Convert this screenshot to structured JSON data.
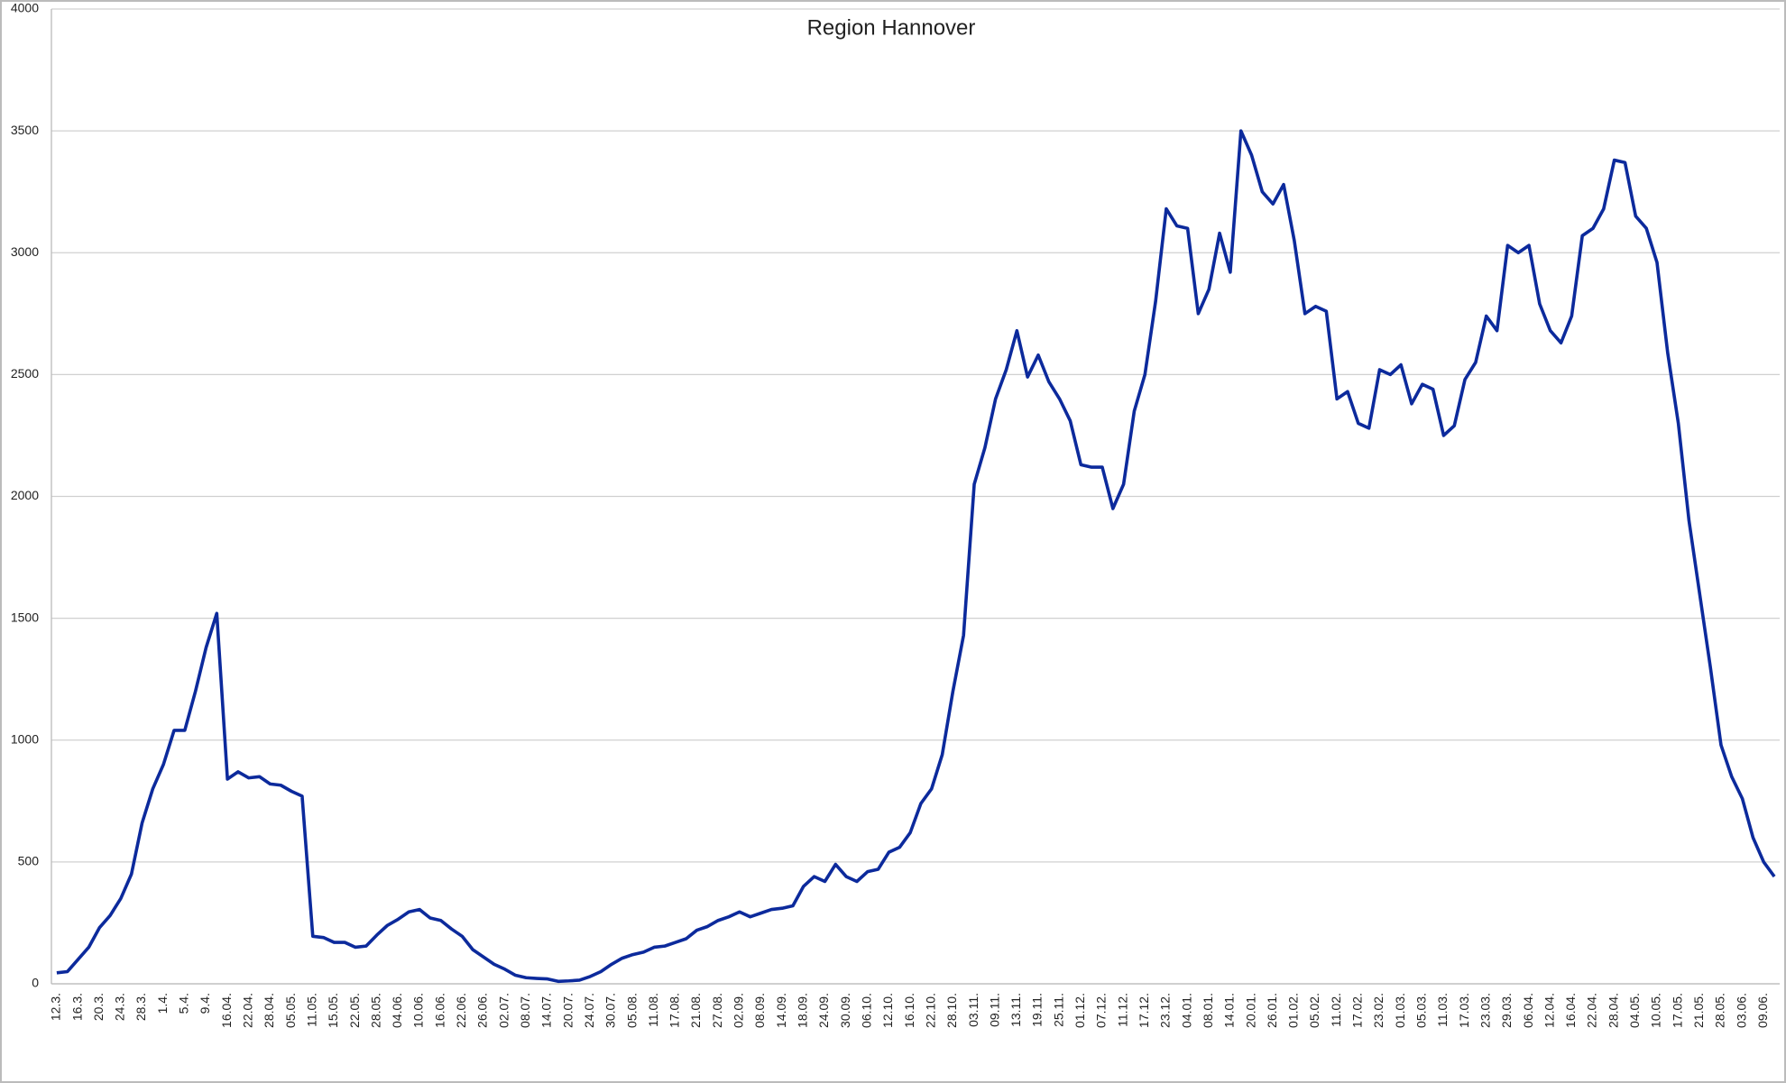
{
  "chart_data": {
    "type": "line",
    "title": "Region Hannover",
    "categories": [
      "12.3.",
      null,
      "16.3.",
      null,
      "20.3.",
      null,
      "24.3.",
      null,
      "28.3.",
      null,
      "1.4.",
      null,
      "5.4.",
      null,
      "9.4.",
      null,
      "16.04.",
      null,
      "22.04.",
      null,
      "28.04.",
      null,
      "05.05.",
      null,
      "11.05.",
      null,
      "15.05.",
      null,
      "22.05.",
      null,
      "28.05.",
      null,
      "04.06.",
      null,
      "10.06.",
      null,
      "16.06.",
      null,
      "22.06.",
      null,
      "26.06.",
      null,
      "02.07.",
      null,
      "08.07.",
      null,
      "14.07.",
      null,
      "20.07.",
      null,
      "24.07.",
      null,
      "30.07.",
      null,
      "05.08.",
      null,
      "11.08.",
      null,
      "17.08.",
      null,
      "21.08.",
      null,
      "27.08.",
      null,
      "02.09.",
      null,
      "08.09.",
      null,
      "14.09.",
      null,
      "18.09.",
      null,
      "24.09.",
      null,
      "30.09.",
      null,
      "06.10.",
      null,
      "12.10.",
      null,
      "16.10.",
      null,
      "22.10.",
      null,
      "28.10.",
      null,
      "03.11.",
      null,
      "09.11.",
      null,
      "13.11.",
      null,
      "19.11.",
      null,
      "25.11.",
      null,
      "01.12.",
      null,
      "07.12.",
      null,
      "11.12.",
      null,
      "17.12.",
      null,
      "23.12.",
      null,
      "04.01.",
      null,
      "08.01.",
      null,
      "14.01.",
      null,
      "20.01.",
      null,
      "26.01.",
      null,
      "01.02.",
      null,
      "05.02.",
      null,
      "11.02.",
      null,
      "17.02.",
      null,
      "23.02.",
      null,
      "01.03.",
      null,
      "05.03.",
      null,
      "11.03.",
      null,
      "17.03.",
      null,
      "23.03.",
      null,
      "29.03.",
      null,
      "06.04.",
      null,
      "12.04.",
      null,
      "16.04.",
      null,
      "22.04.",
      null,
      "28.04.",
      null,
      "04.05.",
      null,
      "10.05.",
      null,
      "17.05.",
      null,
      "21.05.",
      null,
      "28.05.",
      null,
      "03.06.",
      null,
      "09.06.",
      null
    ],
    "values": [
      45,
      50,
      100,
      150,
      230,
      280,
      350,
      450,
      660,
      800,
      900,
      1040,
      1040,
      1200,
      1380,
      1520,
      840,
      870,
      845,
      850,
      820,
      815,
      790,
      770,
      195,
      190,
      170,
      170,
      150,
      155,
      200,
      240,
      265,
      295,
      305,
      270,
      260,
      225,
      195,
      140,
      110,
      80,
      60,
      35,
      25,
      22,
      20,
      10,
      12,
      15,
      30,
      50,
      80,
      105,
      120,
      130,
      150,
      155,
      170,
      185,
      220,
      235,
      260,
      275,
      295,
      275,
      290,
      305,
      310,
      320,
      400,
      440,
      420,
      490,
      440,
      420,
      460,
      470,
      540,
      560,
      620,
      740,
      800,
      940,
      1200,
      1430,
      2050,
      2200,
      2400,
      2520,
      2680,
      2490,
      2580,
      2470,
      2400,
      2310,
      2130,
      2120,
      2120,
      1950,
      2050,
      2350,
      2500,
      2800,
      3180,
      3110,
      3100,
      2750,
      2850,
      3080,
      2920,
      3500,
      3400,
      3250,
      3200,
      3280,
      3050,
      2750,
      2780,
      2760,
      2400,
      2430,
      2300,
      2280,
      2520,
      2500,
      2540,
      2380,
      2460,
      2440,
      2250,
      2290,
      2480,
      2550,
      2740,
      2680,
      3030,
      3000,
      3030,
      2790,
      2680,
      2630,
      2740,
      3070,
      3100,
      3180,
      3380,
      3370,
      3150,
      3100,
      2960,
      2590,
      2300,
      1900,
      1600,
      1300,
      980,
      850,
      760,
      600,
      500,
      440
    ],
    "color": "#0c2a9c",
    "ylim": [
      0,
      4000
    ],
    "yticks": [
      0,
      500,
      1000,
      1500,
      2000,
      2500,
      3000,
      3500,
      4000
    ],
    "grid": true
  }
}
